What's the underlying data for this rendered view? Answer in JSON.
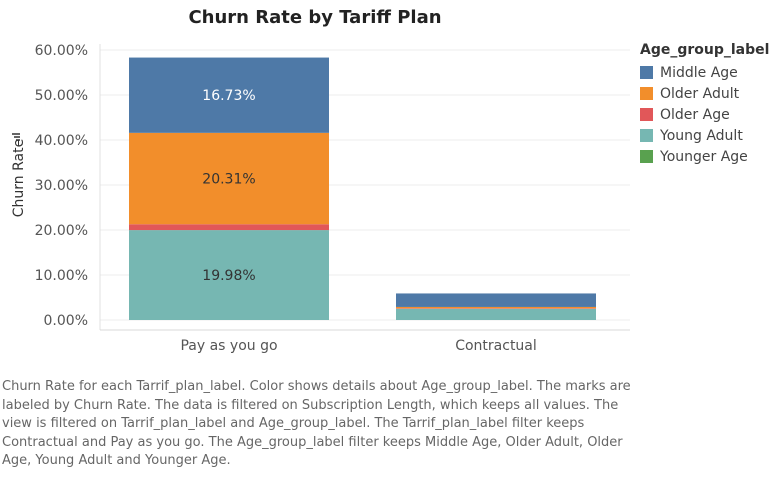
{
  "chart_data": {
    "type": "bar",
    "stacked": true,
    "title": "Churn Rate by Tariff Plan",
    "xlabel": "",
    "ylabel": "Churn Rate",
    "ylim": [
      0,
      0.6
    ],
    "yticks": [
      "0.00%",
      "10.00%",
      "20.00%",
      "30.00%",
      "40.00%",
      "50.00%",
      "60.00%"
    ],
    "ytick_values": [
      0,
      0.1,
      0.2,
      0.3,
      0.4,
      0.5,
      0.6
    ],
    "categories": [
      "Pay as you go",
      "Contractual"
    ],
    "series": [
      {
        "name": "Young Adult",
        "color": "#76b7b2",
        "values": [
          0.1998,
          0.025
        ],
        "labels": [
          "19.98%",
          ""
        ]
      },
      {
        "name": "Older Age",
        "color": "#e15759",
        "values": [
          0.013,
          0.001
        ],
        "labels": [
          "",
          ""
        ]
      },
      {
        "name": "Older Adult",
        "color": "#f28e2b",
        "values": [
          0.2031,
          0.003
        ],
        "labels": [
          "20.31%",
          ""
        ]
      },
      {
        "name": "Middle Age",
        "color": "#4e79a7",
        "values": [
          0.1673,
          0.03
        ],
        "labels": [
          "16.73%",
          ""
        ]
      },
      {
        "name": "Younger Age",
        "color": "#59a14f",
        "values": [
          0,
          0
        ],
        "labels": [
          "",
          ""
        ]
      }
    ],
    "legend_position": "right",
    "grid": true
  },
  "legend": {
    "title": "Age_group_label",
    "items": [
      {
        "label": "Middle Age",
        "color": "#4e79a7"
      },
      {
        "label": "Older Adult",
        "color": "#f28e2b"
      },
      {
        "label": "Older Age",
        "color": "#e15759"
      },
      {
        "label": "Young Adult",
        "color": "#76b7b2"
      },
      {
        "label": "Younger Age",
        "color": "#59a14f"
      }
    ]
  },
  "caption": "Churn Rate for each Tarrif_plan_label.  Color shows details about Age_group_label.  The marks are labeled by Churn Rate. The data is filtered on Subscription  Length, which keeps all values. The view is filtered on Tarrif_plan_label and Age_group_label. The Tarrif_plan_label filter keeps Contractual and Pay as you go. The Age_group_label filter keeps Middle Age, Older Adult, Older Age, Young Adult and Younger Age."
}
